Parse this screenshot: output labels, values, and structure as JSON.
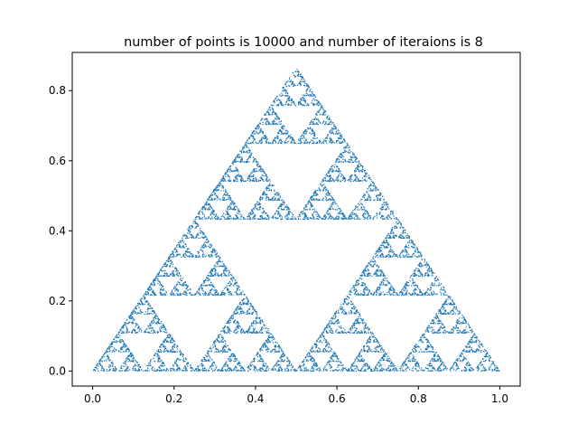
{
  "chart_data": {
    "type": "scatter",
    "title": "number of points is 10000 and number of iteraions is 8",
    "xlabel": "",
    "ylabel": "",
    "xlim": [
      -0.05,
      1.05
    ],
    "ylim": [
      -0.043,
      0.909
    ],
    "xticks": [
      "0.0",
      "0.2",
      "0.4",
      "0.6",
      "0.8",
      "1.0"
    ],
    "yticks": [
      "0.0",
      "0.2",
      "0.4",
      "0.6",
      "0.8"
    ],
    "grid": false,
    "legend": "none",
    "marker_color": "#1f77b4",
    "series": [
      {
        "point_count": 10000,
        "iterations": 8,
        "vertices": [
          [
            0.0,
            0.0
          ],
          [
            1.0,
            0.0
          ],
          [
            0.5,
            0.866
          ]
        ]
      }
    ]
  }
}
